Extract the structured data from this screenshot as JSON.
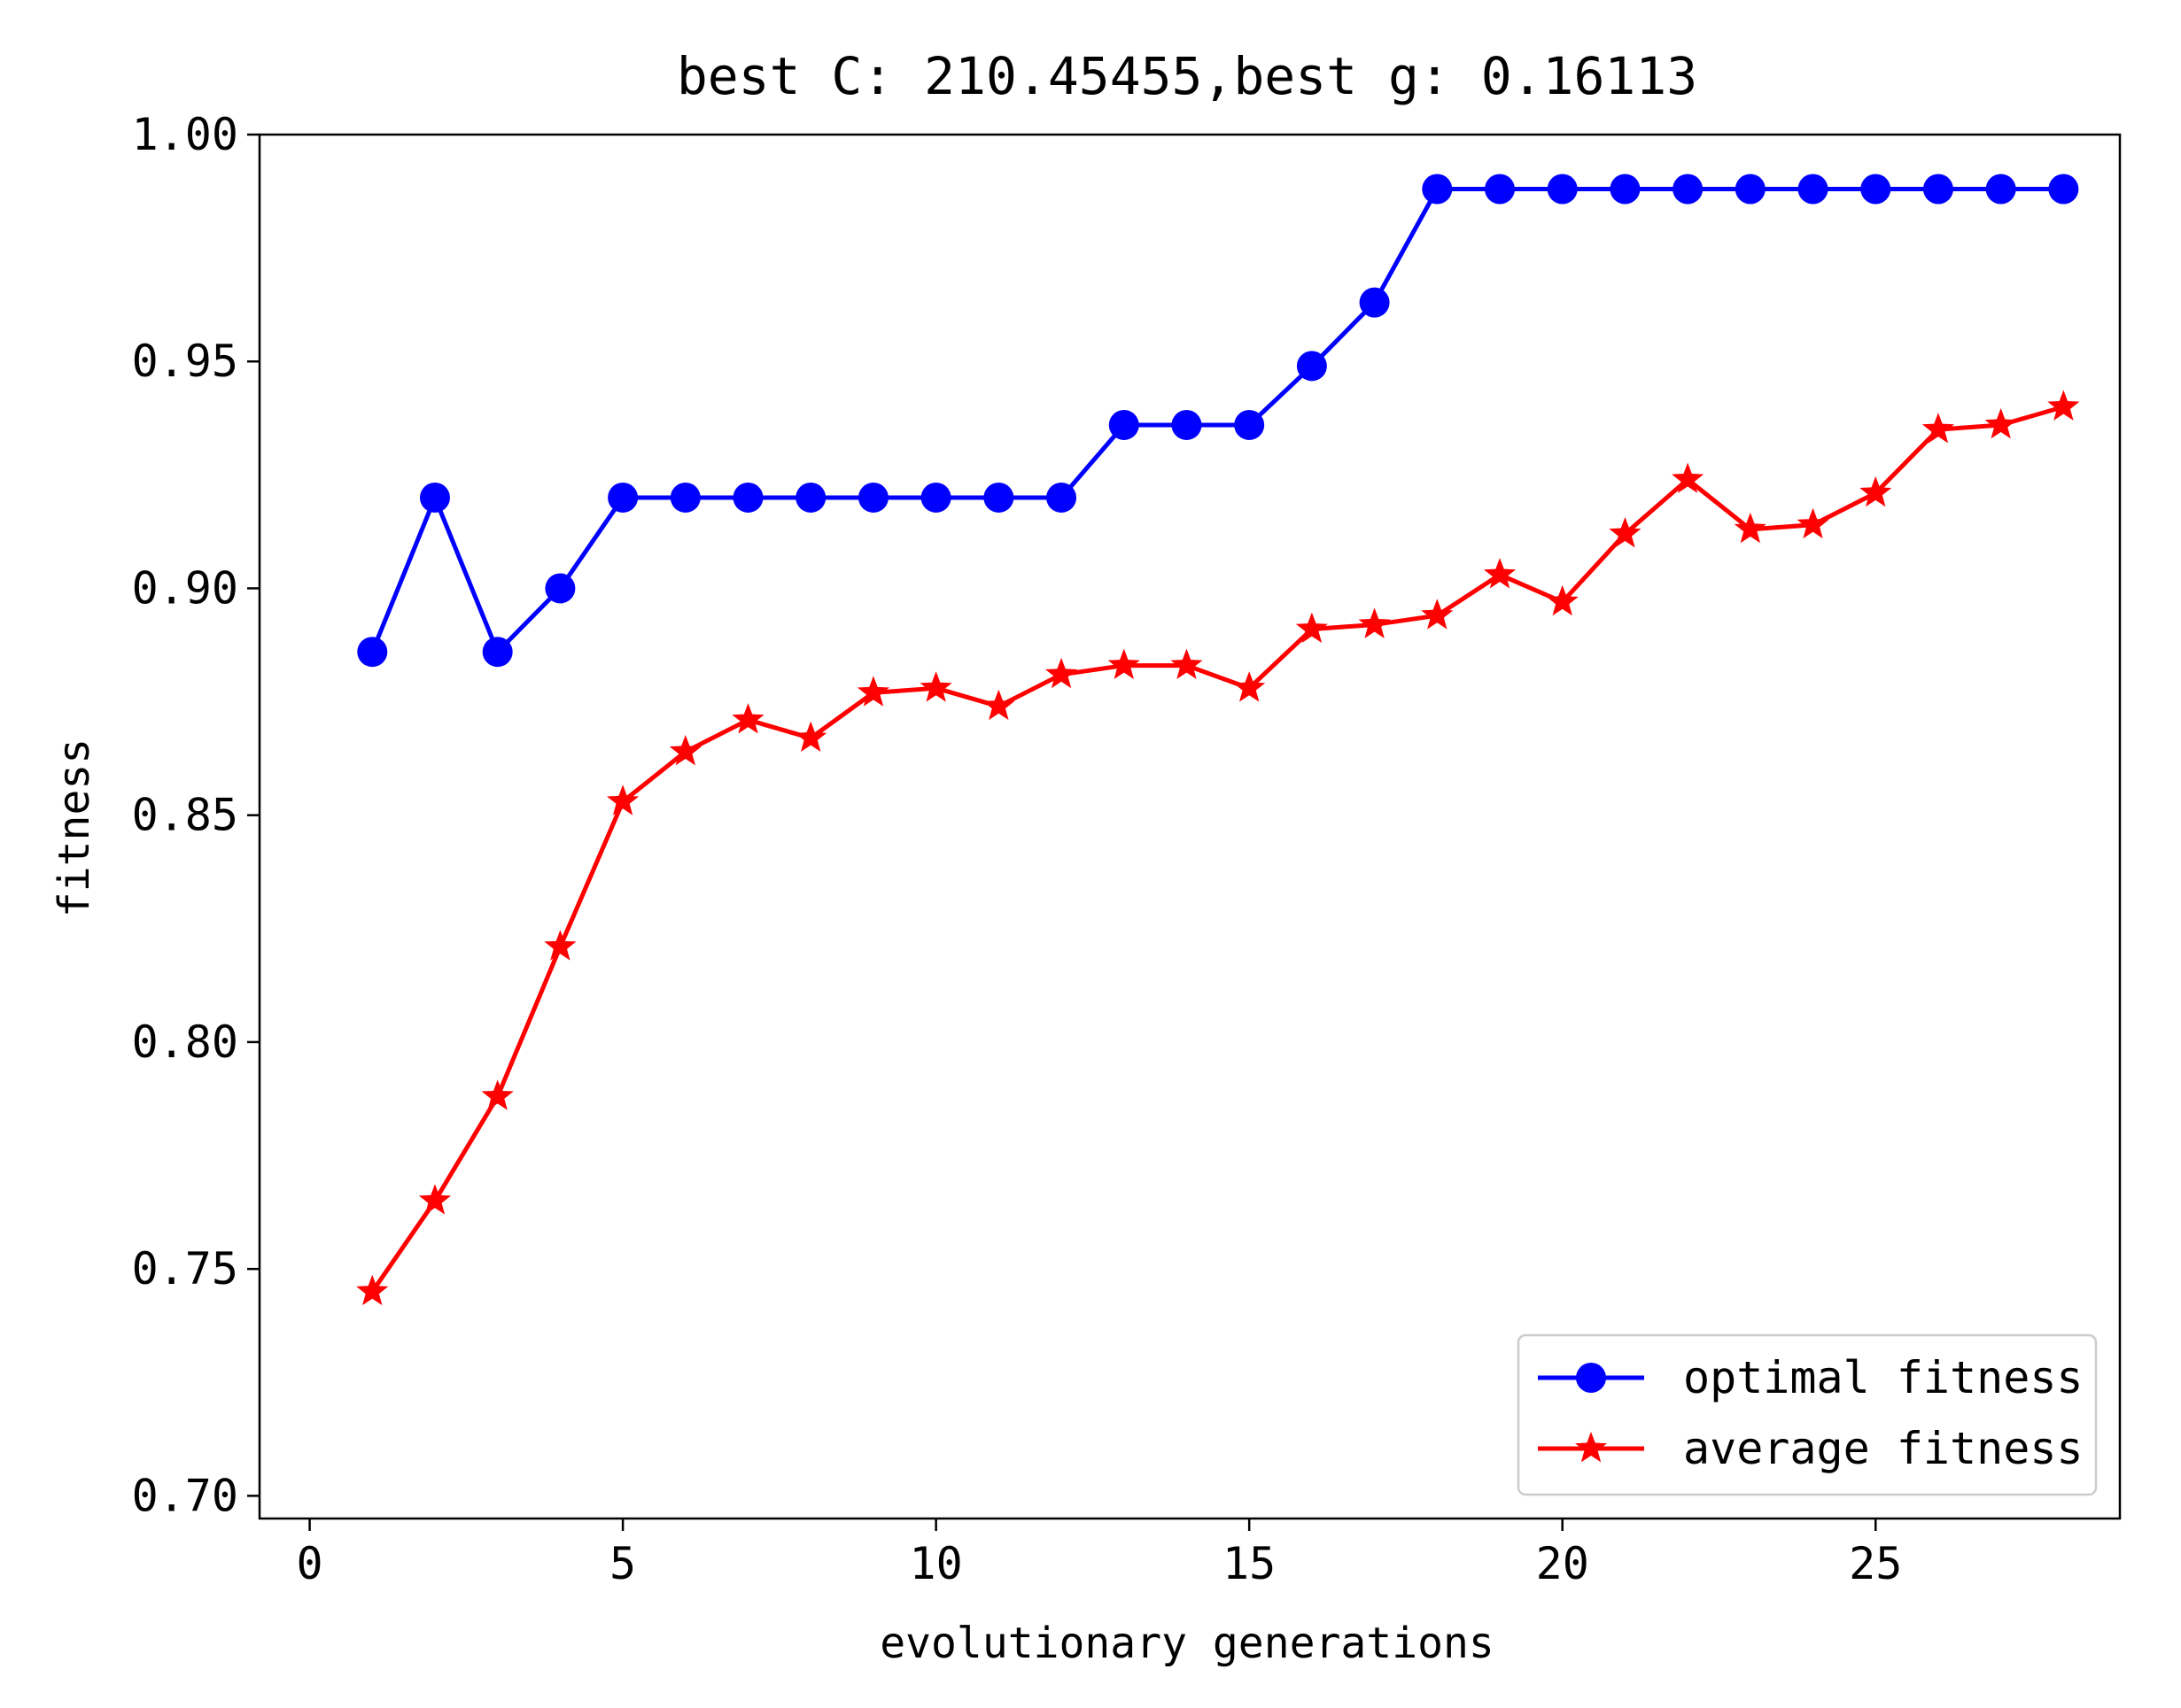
{
  "chart_data": {
    "type": "line",
    "title": "best C: 210.45455,best g: 0.16113",
    "xlabel": "evolutionary generations",
    "ylabel": "fitness",
    "xlim": [
      -0.8,
      28.9
    ],
    "ylim": [
      0.695,
      1.0
    ],
    "x_ticks": [
      0,
      5,
      10,
      15,
      20,
      25
    ],
    "y_ticks": [
      0.7,
      0.75,
      0.8,
      0.85,
      0.9,
      0.95,
      1.0
    ],
    "x_tick_labels": [
      "0",
      "5",
      "10",
      "15",
      "20",
      "25"
    ],
    "y_tick_labels": [
      "0.70",
      "0.75",
      "0.80",
      "0.85",
      "0.90",
      "0.95",
      "1.00"
    ],
    "grid": false,
    "legend_position": "bottom-right",
    "x": [
      1,
      2,
      3,
      4,
      5,
      6,
      7,
      8,
      9,
      10,
      11,
      12,
      13,
      14,
      15,
      16,
      17,
      18,
      19,
      20,
      21,
      22,
      23,
      24,
      25,
      26,
      27,
      28
    ],
    "series": [
      {
        "name": "optimal fitness",
        "color": "#0000ff",
        "marker": "circle",
        "values": [
          0.886,
          0.92,
          0.886,
          0.9,
          0.92,
          0.92,
          0.92,
          0.92,
          0.92,
          0.92,
          0.92,
          0.92,
          0.936,
          0.936,
          0.936,
          0.949,
          0.963,
          0.988,
          0.988,
          0.988,
          0.988,
          0.988,
          0.988,
          0.988,
          0.988,
          0.988,
          0.988,
          0.988
        ]
      },
      {
        "name": "average fitness",
        "color": "#ff0000",
        "marker": "star",
        "values": [
          0.745,
          0.765,
          0.788,
          0.821,
          0.853,
          0.864,
          0.871,
          0.867,
          0.877,
          0.878,
          0.874,
          0.881,
          0.883,
          0.883,
          0.878,
          0.891,
          0.892,
          0.894,
          0.903,
          0.897,
          0.912,
          0.924,
          0.913,
          0.914,
          0.921,
          0.935,
          0.936,
          0.94
        ]
      }
    ]
  }
}
